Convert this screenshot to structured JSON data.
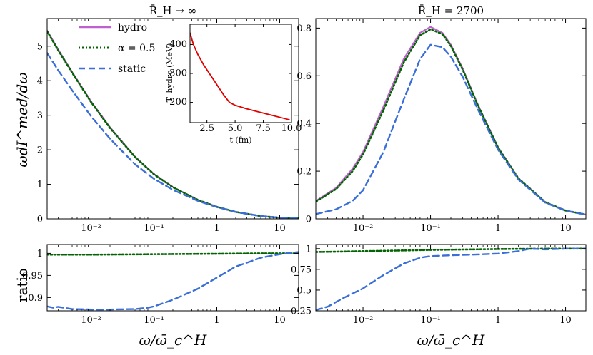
{
  "legend": {
    "items": [
      {
        "label": "hydro",
        "color": "#c060d0",
        "style": "solid"
      },
      {
        "label": "α = 0.5",
        "color": "#006400",
        "style": "dotted"
      },
      {
        "label": "static",
        "color": "#3a6fd8",
        "style": "dashed"
      }
    ]
  },
  "labels": {
    "ylabel_main": "ωdI^med/dω",
    "ylabel_ratio": "ratio",
    "xlabel": "ω/ω̄_c^H",
    "inset_xlabel": "t (fm)",
    "inset_ylabel": "T_hydro (MeV)"
  },
  "chart_data": [
    {
      "id": "main-left",
      "type": "line",
      "title": "R̄_H → ∞",
      "xscale": "log",
      "xlim": [
        0.002,
        20
      ],
      "ylim": [
        0,
        5.8
      ],
      "xticks": [
        {
          "v": 0.01,
          "label": "10⁻²"
        },
        {
          "v": 0.1,
          "label": "10⁻¹"
        },
        {
          "v": 1,
          "label": "1"
        },
        {
          "v": 10,
          "label": "10"
        }
      ],
      "yticks": [
        0,
        1,
        2,
        3,
        4,
        5
      ],
      "series": [
        {
          "name": "hydro",
          "x": [
            0.002,
            0.003,
            0.005,
            0.01,
            0.02,
            0.05,
            0.1,
            0.2,
            0.5,
            1,
            2,
            5,
            10,
            20
          ],
          "y": [
            5.45,
            4.9,
            4.25,
            3.4,
            2.65,
            1.8,
            1.3,
            0.92,
            0.55,
            0.35,
            0.2,
            0.08,
            0.035,
            0.015
          ]
        },
        {
          "name": "α = 0.5",
          "x": [
            0.002,
            0.003,
            0.005,
            0.01,
            0.02,
            0.05,
            0.1,
            0.2,
            0.5,
            1,
            2,
            5,
            10,
            20
          ],
          "y": [
            5.43,
            4.88,
            4.23,
            3.38,
            2.63,
            1.79,
            1.29,
            0.915,
            0.548,
            0.349,
            0.2,
            0.08,
            0.035,
            0.015
          ]
        },
        {
          "name": "static",
          "x": [
            0.002,
            0.003,
            0.005,
            0.01,
            0.02,
            0.05,
            0.1,
            0.2,
            0.5,
            1,
            2,
            5,
            10,
            20
          ],
          "y": [
            4.8,
            4.3,
            3.72,
            2.97,
            2.32,
            1.58,
            1.16,
            0.84,
            0.52,
            0.34,
            0.2,
            0.08,
            0.035,
            0.015
          ]
        }
      ]
    },
    {
      "id": "main-right",
      "type": "line",
      "title": "R̄_H = 2700",
      "xscale": "log",
      "xlim": [
        0.002,
        20
      ],
      "ylim": [
        0,
        0.84
      ],
      "xticks": [
        {
          "v": 0.01,
          "label": "10⁻²"
        },
        {
          "v": 0.1,
          "label": "10⁻¹"
        },
        {
          "v": 1,
          "label": "1"
        },
        {
          "v": 10,
          "label": "10"
        }
      ],
      "yticks": [
        0,
        0.2,
        0.4,
        0.6,
        0.8
      ],
      "series": [
        {
          "name": "hydro",
          "x": [
            0.002,
            0.004,
            0.007,
            0.01,
            0.02,
            0.04,
            0.07,
            0.1,
            0.15,
            0.2,
            0.3,
            0.5,
            1,
            2,
            5,
            10,
            20
          ],
          "y": [
            0.075,
            0.13,
            0.21,
            0.28,
            0.47,
            0.67,
            0.78,
            0.805,
            0.78,
            0.73,
            0.63,
            0.48,
            0.3,
            0.17,
            0.07,
            0.035,
            0.018
          ]
        },
        {
          "name": "α = 0.5",
          "x": [
            0.002,
            0.004,
            0.007,
            0.01,
            0.02,
            0.04,
            0.07,
            0.1,
            0.15,
            0.2,
            0.3,
            0.5,
            1,
            2,
            5,
            10,
            20
          ],
          "y": [
            0.072,
            0.125,
            0.2,
            0.27,
            0.455,
            0.655,
            0.77,
            0.795,
            0.775,
            0.725,
            0.625,
            0.477,
            0.299,
            0.17,
            0.07,
            0.035,
            0.018
          ]
        },
        {
          "name": "static",
          "x": [
            0.002,
            0.004,
            0.007,
            0.01,
            0.02,
            0.04,
            0.07,
            0.1,
            0.15,
            0.2,
            0.3,
            0.5,
            1,
            2,
            5,
            10,
            20
          ],
          "y": [
            0.02,
            0.04,
            0.075,
            0.12,
            0.28,
            0.5,
            0.67,
            0.73,
            0.72,
            0.68,
            0.595,
            0.46,
            0.29,
            0.165,
            0.068,
            0.034,
            0.018
          ]
        }
      ]
    },
    {
      "id": "ratio-left",
      "type": "line",
      "xscale": "log",
      "xlim": [
        0.002,
        20
      ],
      "ylim": [
        0.87,
        1.02
      ],
      "xticks": [
        {
          "v": 0.01,
          "label": "10⁻²"
        },
        {
          "v": 0.1,
          "label": "10⁻¹"
        },
        {
          "v": 1,
          "label": "1"
        },
        {
          "v": 10,
          "label": "10"
        }
      ],
      "yticks": [
        {
          "v": 0.9,
          "label": "0.9"
        },
        {
          "v": 0.95,
          "label": "0.95"
        },
        {
          "v": 1,
          "label": "1"
        }
      ],
      "series": [
        {
          "name": "α = 0.5",
          "x": [
            0.002,
            0.01,
            0.1,
            1,
            5,
            20
          ],
          "y": [
            0.997,
            0.997,
            0.998,
            0.999,
            1.0,
            1.0
          ]
        },
        {
          "name": "static",
          "x": [
            0.002,
            0.0025,
            0.003,
            0.005,
            0.01,
            0.02,
            0.05,
            0.08,
            0.1,
            0.2,
            0.5,
            1,
            2,
            5,
            10,
            20
          ],
          "y": [
            0.88,
            0.877,
            0.879,
            0.874,
            0.873,
            0.873,
            0.874,
            0.877,
            0.88,
            0.895,
            0.92,
            0.945,
            0.97,
            0.99,
            0.998,
            1.003
          ]
        }
      ]
    },
    {
      "id": "ratio-right",
      "type": "line",
      "xscale": "log",
      "xlim": [
        0.002,
        20
      ],
      "ylim": [
        0.25,
        1.05
      ],
      "xticks": [
        {
          "v": 0.01,
          "label": "10⁻²"
        },
        {
          "v": 0.1,
          "label": "10⁻¹"
        },
        {
          "v": 1,
          "label": "1"
        },
        {
          "v": 10,
          "label": "10"
        }
      ],
      "yticks": [
        {
          "v": 0.25,
          "label": "0.25"
        },
        {
          "v": 0.5,
          "label": "0.5"
        },
        {
          "v": 0.75,
          "label": "0.75"
        },
        {
          "v": 1,
          "label": "1"
        }
      ],
      "series": [
        {
          "name": "α = 0.5",
          "x": [
            0.002,
            0.005,
            0.01,
            0.05,
            0.1,
            1,
            5,
            20
          ],
          "y": [
            0.96,
            0.965,
            0.97,
            0.98,
            0.985,
            0.995,
            1.0,
            1.0
          ]
        },
        {
          "name": "static",
          "x": [
            0.002,
            0.003,
            0.005,
            0.01,
            0.02,
            0.04,
            0.07,
            0.1,
            0.2,
            0.5,
            1,
            2,
            3,
            5,
            10,
            20
          ],
          "y": [
            0.26,
            0.3,
            0.4,
            0.52,
            0.68,
            0.82,
            0.89,
            0.91,
            0.92,
            0.93,
            0.94,
            0.97,
            1.0,
            0.99,
            1.0,
            1.0
          ]
        }
      ]
    },
    {
      "id": "inset",
      "type": "line",
      "xlim": [
        1,
        10
      ],
      "ylim": [
        130,
        470
      ],
      "xticks": [
        {
          "v": 2.5,
          "label": "2.5"
        },
        {
          "v": 5,
          "label": "5.0"
        },
        {
          "v": 7.5,
          "label": "7.5"
        },
        {
          "v": 10,
          "label": "10.0"
        }
      ],
      "yticks": [
        {
          "v": 200,
          "label": "200"
        },
        {
          "v": 300,
          "label": "300"
        },
        {
          "v": 400,
          "label": "400"
        }
      ],
      "series": [
        {
          "name": "T_hydro",
          "x": [
            1.0,
            1.3,
            1.7,
            2.2,
            2.8,
            3.4,
            4.0,
            4.5,
            5.0,
            6.0,
            7.0,
            8.0,
            9.0,
            9.8
          ],
          "y": [
            440,
            400,
            365,
            330,
            295,
            260,
            225,
            200,
            190,
            178,
            168,
            158,
            148,
            140
          ]
        }
      ]
    }
  ]
}
